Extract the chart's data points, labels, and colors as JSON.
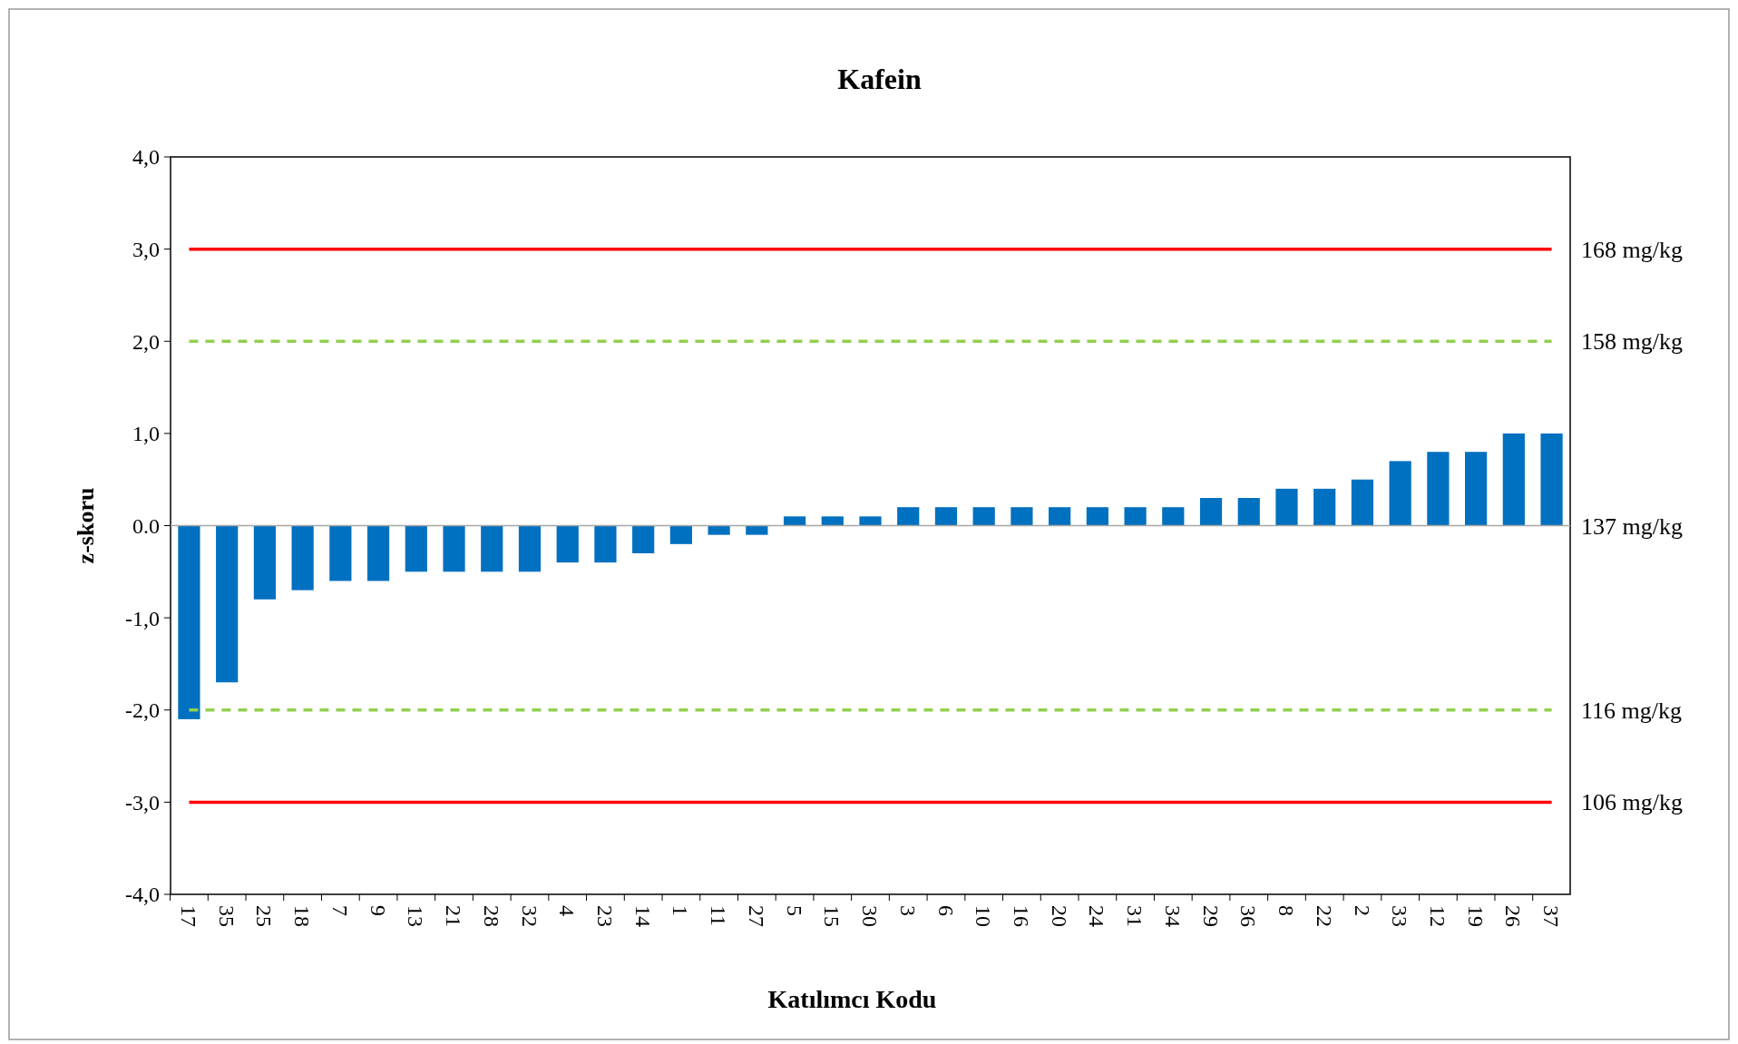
{
  "chart_data": {
    "type": "bar",
    "title": "Kafein",
    "xlabel": "Katılımcı Kodu",
    "ylabel": "z-skoru",
    "categories": [
      "17",
      "35",
      "25",
      "18",
      "7",
      "9",
      "13",
      "21",
      "28",
      "32",
      "4",
      "23",
      "14",
      "1",
      "11",
      "27",
      "5",
      "15",
      "30",
      "3",
      "6",
      "10",
      "16",
      "20",
      "24",
      "31",
      "34",
      "29",
      "36",
      "8",
      "22",
      "2",
      "33",
      "12",
      "19",
      "26",
      "37"
    ],
    "values": [
      -2.1,
      -1.7,
      -0.8,
      -0.7,
      -0.6,
      -0.6,
      -0.5,
      -0.5,
      -0.5,
      -0.5,
      -0.4,
      -0.4,
      -0.3,
      -0.2,
      -0.1,
      -0.1,
      0.1,
      0.1,
      0.1,
      0.2,
      0.2,
      0.2,
      0.2,
      0.2,
      0.2,
      0.2,
      0.2,
      0.3,
      0.3,
      0.4,
      0.4,
      0.5,
      0.7,
      0.8,
      0.8,
      1.0,
      1.0
    ],
    "color": "#0070c0",
    "ylim": [
      -4,
      4
    ],
    "yticks": [
      {
        "value": -4,
        "label": "-4,0"
      },
      {
        "value": -3,
        "label": "-3,0"
      },
      {
        "value": -2,
        "label": "-2,0"
      },
      {
        "value": -1,
        "label": "-1,0"
      },
      {
        "value": 0,
        "label": "0.0"
      },
      {
        "value": 1,
        "label": "1,0"
      },
      {
        "value": 2,
        "label": "2,0"
      },
      {
        "value": 3,
        "label": "3,0"
      },
      {
        "value": 4,
        "label": "4,0"
      }
    ],
    "ref_lines": [
      {
        "axis": "y",
        "value": 3,
        "label": "168 mg/kg",
        "color": "#ff0000",
        "line_style": "solid"
      },
      {
        "axis": "y",
        "value": 2,
        "label": "158 mg/kg",
        "color": "#92d050",
        "line_style": "dashed"
      },
      {
        "axis": "y",
        "value": 0,
        "label": "137 mg/kg",
        "color": "#a6a6a6",
        "line_style": "solid"
      },
      {
        "axis": "y",
        "value": -2,
        "label": "116 mg/kg",
        "color": "#92d050",
        "line_style": "dashed"
      },
      {
        "axis": "y",
        "value": -3,
        "label": "106 mg/kg",
        "color": "#ff0000",
        "line_style": "solid"
      }
    ],
    "grid": false
  }
}
